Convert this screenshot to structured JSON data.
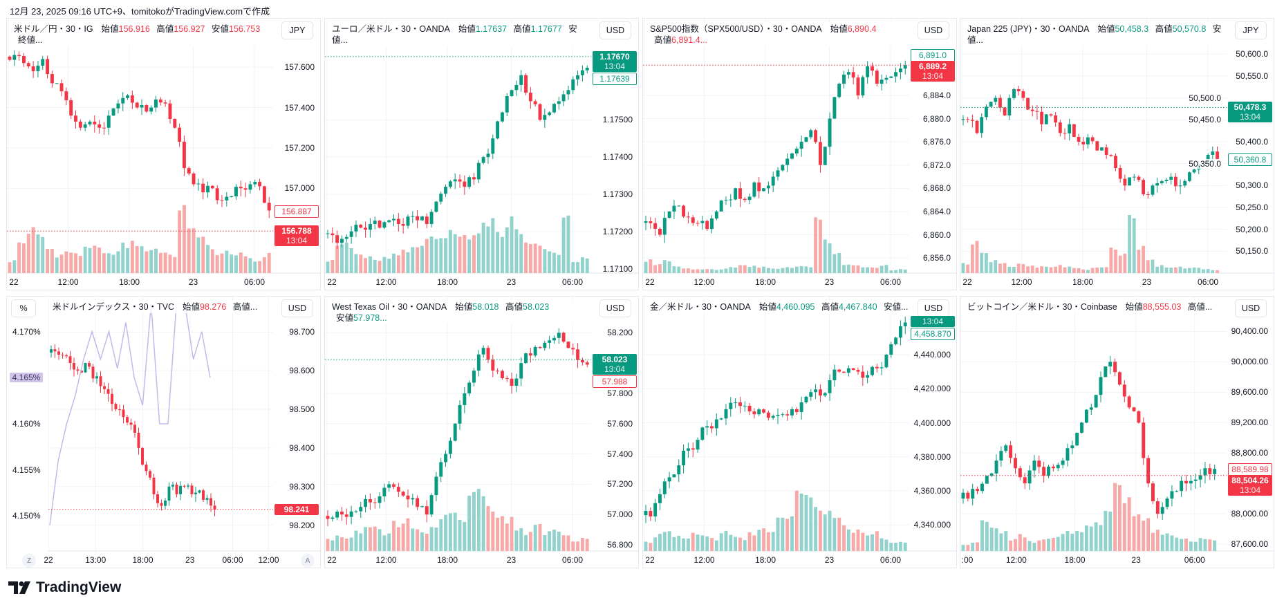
{
  "caption": "12月 23, 2025 09:16 UTC+9、tomitokoがTradingView.comで作成",
  "logo": "TradingView",
  "colors": {
    "up": "#089981",
    "down": "#f23645",
    "vol_up": "#92d2cc",
    "vol_down": "#f7a9a7",
    "overlay": "#c5b8ea",
    "grid": "#f0f3fa"
  },
  "panels": [
    {
      "id": "usdjpy",
      "symbol": "米ドル／円・30・IG",
      "fields": [
        {
          "label": "始値",
          "value": "156.916",
          "color": "down"
        },
        {
          "label": "高値",
          "value": "156.927",
          "color": "down"
        },
        {
          "label": "安値",
          "value": "156.753",
          "color": "down"
        }
      ],
      "trailing": "終値...",
      "currency": "JPY",
      "price_labels": [
        {
          "text": "156.887",
          "sub": "",
          "style": "outline",
          "color": "down"
        },
        {
          "text": "156.788",
          "sub": "13:04",
          "style": "filled",
          "color": "down"
        }
      ],
      "chart_data": {
        "type": "candlestick",
        "ylim": [
          156.58,
          157.84
        ],
        "yticks": [
          "157.600",
          "157.400",
          "157.200",
          "157.000"
        ],
        "xticks": [
          "22",
          "12:00",
          "18:00",
          "23",
          "06:00"
        ],
        "closes": [
          157.66,
          157.62,
          157.58,
          157.64,
          157.52,
          157.48,
          157.36,
          157.3,
          157.33,
          157.3,
          157.36,
          157.42,
          157.46,
          157.4,
          157.38,
          157.44,
          157.42,
          157.3,
          157.1,
          157.02,
          156.98,
          157.0,
          156.94,
          156.96,
          157.0,
          157.02,
          157.01,
          156.89
        ],
        "volumes": [
          0.2,
          0.5,
          0.7,
          0.6,
          0.4,
          0.3,
          0.35,
          0.3,
          0.45,
          0.4,
          0.3,
          0.35,
          0.45,
          0.5,
          0.4,
          0.4,
          0.35,
          0.3,
          1.0,
          0.8,
          0.55,
          0.45,
          0.3,
          0.35,
          0.3,
          0.25,
          0.2,
          0.3
        ]
      }
    },
    {
      "id": "eurusd",
      "symbol": "ユーロ／米ドル・30・OANDA",
      "fields": [
        {
          "label": "始値",
          "value": "1.17637",
          "color": "up"
        },
        {
          "label": "高値",
          "value": "1.17677",
          "color": "up"
        }
      ],
      "trailing": "安値...",
      "currency": "USD",
      "price_labels": [
        {
          "text": "1.17670",
          "sub": "13:04",
          "style": "filled",
          "color": "up"
        },
        {
          "text": "1.17639",
          "sub": "",
          "style": "outline",
          "color": "up"
        }
      ],
      "chart_data": {
        "type": "candlestick",
        "ylim": [
          1.17088,
          1.17772
        ],
        "yticks": [
          "1.17500",
          "1.17400",
          "1.17300",
          "1.17200",
          "1.17100"
        ],
        "xticks": [
          "22",
          "12:00",
          "18:00",
          "23",
          "06:00"
        ],
        "closes": [
          1.1719,
          1.1718,
          1.172,
          1.1721,
          1.1722,
          1.1721,
          1.1723,
          1.1722,
          1.1724,
          1.1723,
          1.1722,
          1.1728,
          1.1732,
          1.1734,
          1.1732,
          1.1734,
          1.174,
          1.1745,
          1.1752,
          1.1758,
          1.1762,
          1.1755,
          1.175,
          1.1752,
          1.1755,
          1.1758,
          1.1762,
          1.1764
        ],
        "volumes": [
          0.2,
          0.5,
          0.45,
          0.3,
          0.25,
          0.2,
          0.25,
          0.3,
          0.35,
          0.4,
          0.5,
          0.55,
          0.6,
          0.65,
          0.7,
          0.6,
          0.75,
          0.8,
          0.7,
          0.85,
          0.7,
          0.55,
          0.45,
          0.4,
          0.3,
          0.9,
          0.2,
          0.25
        ]
      }
    },
    {
      "id": "spx500",
      "symbol": "S&P500指数（SPX500/USD）・30・OANDA",
      "fields": [
        {
          "label": "始値",
          "value": "6,890.4",
          "color": "down"
        },
        {
          "label": "高値",
          "value": "6,891.4...",
          "color": "down"
        }
      ],
      "trailing": "",
      "currency": "USD",
      "price_labels": [
        {
          "text": "6,891.0",
          "sub": "",
          "style": "outline",
          "color": "up"
        },
        {
          "text": "6,889.2",
          "sub": "13:04",
          "style": "filled",
          "color": "down"
        }
      ],
      "chart_data": {
        "type": "candlestick",
        "ylim": [
          6853.4,
          6897.2
        ],
        "yticks": [
          "6,884.0",
          "6,880.0",
          "6,876.0",
          "6,872.0",
          "6,868.0",
          "6,864.0",
          "6,860.0",
          "6,856.0"
        ],
        "xticks": [
          "22",
          "12:00",
          "18:00",
          "23",
          "06:00"
        ],
        "closes": [
          6862,
          6860,
          6864,
          6865,
          6863,
          6862,
          6861,
          6864,
          6866,
          6868,
          6866,
          6869,
          6868,
          6870,
          6872,
          6874,
          6876,
          6878,
          6872,
          6880,
          6886,
          6888,
          6884,
          6889,
          6886,
          6887,
          6888,
          6889.2
        ],
        "volumes": [
          0.2,
          0.15,
          0.2,
          0.12,
          0.08,
          0.07,
          0.06,
          0.06,
          0.07,
          0.1,
          0.15,
          0.12,
          0.1,
          0.08,
          0.08,
          0.1,
          0.12,
          0.1,
          1.0,
          0.5,
          0.3,
          0.15,
          0.12,
          0.1,
          0.1,
          0.12,
          0.05,
          0.06
        ]
      }
    },
    {
      "id": "jp225",
      "symbol": "Japan 225 (JPY)・30・OANDA",
      "fields": [
        {
          "label": "始値",
          "value": "50,458.3",
          "color": "up"
        },
        {
          "label": "高値",
          "value": "50,570.8",
          "color": "up"
        }
      ],
      "trailing": "安値...",
      "currency": "JPY",
      "price_labels": [
        {
          "text": "50,478.3",
          "sub": "13:04",
          "style": "filled",
          "color": "up"
        },
        {
          "text": "50,360.8",
          "sub": "",
          "style": "outline",
          "color": "up"
        }
      ],
      "chart_data": {
        "type": "candlestick",
        "ylim": [
          50100,
          50681
        ],
        "yticks": [
          "50,600.0",
          "50,550.0",
          "50,500.0",
          "50,450.0",
          "50,400.0",
          "50,350.0",
          "50,300.0",
          "50,250.0",
          "50,200.0",
          "50,150.0"
        ],
        "xticks": [
          "22",
          "12:00",
          "18:00",
          "23",
          "06:00"
        ],
        "closes": [
          50450,
          50420,
          50480,
          50500,
          50460,
          50520,
          50500,
          50470,
          50440,
          50460,
          50420,
          50440,
          50400,
          50410,
          50380,
          50370,
          50340,
          50300,
          50320,
          50280,
          50300,
          50310,
          50320,
          50300,
          50330,
          50350,
          50370,
          50360
        ],
        "volumes": [
          0.15,
          0.5,
          0.3,
          0.2,
          0.15,
          0.1,
          0.15,
          0.12,
          0.1,
          0.1,
          0.12,
          0.1,
          0.08,
          0.06,
          0.08,
          0.1,
          0.4,
          0.3,
          1.0,
          0.4,
          0.2,
          0.12,
          0.1,
          0.1,
          0.08,
          0.1,
          0.06,
          0.05
        ]
      }
    },
    {
      "id": "dxy",
      "symbol": "米ドルインデックス・30・TVC",
      "fields": [
        {
          "label": "始値",
          "value": "98.276",
          "color": "down"
        }
      ],
      "trailing": "高値...",
      "currency": "USD",
      "left_currency": "%",
      "left_axis": {
        "ylim": [
          4.1462,
          4.1738
        ],
        "yticks": [
          "4.170%",
          "4.160%",
          "4.155%",
          "4.150%"
        ],
        "tag": "4.165%",
        "tag_value": 4.165
      },
      "overlay": [
        4.149,
        4.156,
        4.16,
        4.163,
        4.167,
        4.17,
        4.167,
        4.17,
        4.166,
        4.171,
        4.165,
        4.162,
        4.173,
        4.16,
        4.16,
        4.173,
        4.173,
        4.167,
        4.17,
        4.165
      ],
      "price_labels": [
        {
          "text": "98.241",
          "sub": "",
          "style": "filled",
          "color": "down"
        }
      ],
      "buttons": [
        "Z",
        "A"
      ],
      "chart_data": {
        "type": "candlestick",
        "ylim": [
          98.133,
          98.792
        ],
        "yticks": [
          "98.700",
          "98.600",
          "98.500",
          "98.400",
          "98.300",
          "98.200"
        ],
        "xticks": [
          "22",
          "13:00",
          "18:00",
          "23",
          "06:00",
          "12:00"
        ],
        "closes": [
          98.65,
          98.64,
          98.62,
          98.6,
          98.62,
          98.58,
          98.56,
          98.54,
          98.5,
          98.48,
          98.46,
          98.4,
          98.34,
          98.28,
          98.25,
          98.3,
          98.28,
          98.3,
          98.28,
          98.29,
          98.27,
          98.24
        ]
      }
    },
    {
      "id": "wti",
      "symbol": "West Texas Oil・30・OANDA",
      "fields": [
        {
          "label": "始値",
          "value": "58.018",
          "color": "up"
        },
        {
          "label": "高値",
          "value": "58.023",
          "color": "up"
        },
        {
          "label": "安値",
          "value": "57.978...",
          "color": "up"
        }
      ],
      "trailing": "",
      "currency": "USD",
      "price_labels": [
        {
          "text": "58.023",
          "sub": "13:04",
          "style": "filled",
          "color": "up"
        },
        {
          "text": "57.988",
          "sub": "",
          "style": "outline",
          "color": "down"
        }
      ],
      "chart_data": {
        "type": "candlestick",
        "ylim": [
          56.759,
          58.439
        ],
        "yticks": [
          "58.200",
          "57.800",
          "57.600",
          "57.400",
          "57.200",
          "57.000",
          "56.800"
        ],
        "xticks": [
          "22",
          "12:00",
          "18:00",
          "23",
          "06:00"
        ],
        "closes": [
          56.98,
          57.0,
          57.02,
          57.05,
          57.08,
          57.12,
          57.2,
          57.15,
          57.1,
          57.05,
          57.0,
          57.25,
          57.4,
          57.6,
          57.8,
          57.95,
          58.1,
          57.95,
          57.9,
          57.85,
          58.0,
          58.05,
          58.1,
          58.15,
          58.2,
          58.1,
          58.02,
          57.99
        ],
        "volumes": [
          0.2,
          0.25,
          0.2,
          0.3,
          0.35,
          0.4,
          0.3,
          0.45,
          0.5,
          0.4,
          0.3,
          0.35,
          0.6,
          0.7,
          0.5,
          0.9,
          1.0,
          0.7,
          0.6,
          0.5,
          0.35,
          0.3,
          0.4,
          0.3,
          0.35,
          0.25,
          0.15,
          0.2
        ]
      }
    },
    {
      "id": "gold",
      "symbol": "金／米ドル・30・OANDA",
      "fields": [
        {
          "label": "始値",
          "value": "4,460.095",
          "color": "up"
        },
        {
          "label": "高値",
          "value": "4,467.840",
          "color": "up"
        }
      ],
      "trailing": "安値...",
      "currency": "USD",
      "price_labels": [
        {
          "text": "",
          "sub": "13:04",
          "style": "filled",
          "color": "up"
        },
        {
          "text": "4,458.870",
          "sub": "",
          "style": "outline",
          "color": "up"
        }
      ],
      "chart_data": {
        "type": "candlestick",
        "ylim": [
          4324.7,
          4474.1
        ],
        "yticks": [
          "4,440.000",
          "4,420.000",
          "4,400.000",
          "4,380.000",
          "4,360.000",
          "4,340.000"
        ],
        "xticks": [
          "22",
          "12:00",
          "18:00",
          "23",
          "06:00"
        ],
        "closes": [
          4345,
          4358,
          4368,
          4375,
          4385,
          4390,
          4398,
          4402,
          4408,
          4412,
          4410,
          4405,
          4406,
          4404,
          4405,
          4408,
          4412,
          4418,
          4416,
          4425,
          4430,
          4432,
          4430,
          4428,
          4432,
          4440,
          4450,
          4458.9
        ],
        "volumes": [
          0.15,
          0.25,
          0.3,
          0.25,
          0.2,
          0.3,
          0.25,
          0.2,
          0.3,
          0.25,
          0.2,
          0.3,
          0.35,
          0.3,
          0.5,
          0.6,
          0.9,
          1.0,
          0.7,
          0.6,
          0.5,
          0.4,
          0.35,
          0.3,
          0.3,
          0.2,
          0.15,
          0.15
        ]
      }
    },
    {
      "id": "btcusd",
      "symbol": "ビットコイン／米ドル・30・Coinbase",
      "fields": [
        {
          "label": "始値",
          "value": "88,555.03",
          "color": "down"
        }
      ],
      "trailing": "高値...",
      "currency": "USD",
      "price_labels": [
        {
          "text": "88,589.98",
          "sub": "",
          "style": "outline",
          "color": "down"
        },
        {
          "text": "88,504.26",
          "sub": "13:04",
          "style": "filled",
          "color": "down"
        }
      ],
      "chart_data": {
        "type": "candlestick",
        "ylim": [
          87510,
          90859
        ],
        "yticks": [
          "90,400.00",
          "90,000.00",
          "89,600.00",
          "89,200.00",
          "88,800.00",
          "88,000.00",
          "87,600.00"
        ],
        "xticks": [
          ":00",
          "12:00",
          "18:00",
          "23",
          "06:00"
        ],
        "closes": [
          88200,
          88300,
          88500,
          88700,
          88900,
          88600,
          88400,
          88700,
          88500,
          88600,
          88700,
          88900,
          89200,
          89400,
          89800,
          90000,
          89700,
          89400,
          89200,
          88400,
          88000,
          88200,
          88300,
          88400,
          88450,
          88600,
          88590
        ],
        "volumes": [
          0.1,
          0.15,
          0.5,
          0.4,
          0.3,
          0.2,
          0.25,
          0.15,
          0.2,
          0.2,
          0.25,
          0.3,
          0.35,
          0.4,
          0.5,
          0.7,
          1.0,
          0.8,
          0.6,
          0.5,
          0.35,
          0.3,
          0.25,
          0.2,
          0.15,
          0.2,
          0.2
        ]
      }
    }
  ]
}
